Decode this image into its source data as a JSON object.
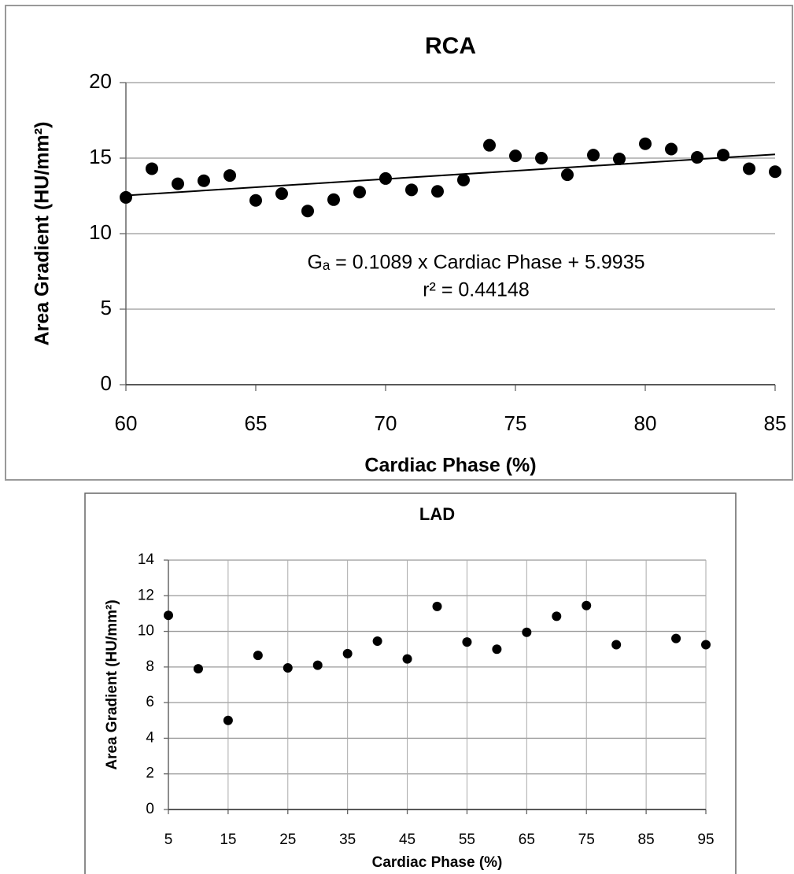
{
  "chart_data": [
    {
      "type": "scatter",
      "title": "RCA",
      "x_label": "Cardiac Phase (%)",
      "y_label": "Area Gradient (HU/mm²)",
      "x": [
        60,
        61,
        62,
        63,
        64,
        65,
        66,
        67,
        68,
        69,
        70,
        71,
        72,
        73,
        74,
        75,
        76,
        77,
        78,
        79,
        80,
        81,
        82,
        83,
        84,
        85
      ],
      "values": [
        12.4,
        14.3,
        13.3,
        13.5,
        13.85,
        12.2,
        12.65,
        11.5,
        12.25,
        12.75,
        13.65,
        12.9,
        12.8,
        13.55,
        15.85,
        15.15,
        15.0,
        13.9,
        15.2,
        14.95,
        15.95,
        15.6,
        15.05,
        15.2,
        14.3,
        14.1
      ],
      "color": "#000000",
      "xlim": [
        60,
        85
      ],
      "xticks": [
        60,
        65,
        70,
        75,
        80,
        85
      ],
      "ylim": [
        0,
        20
      ],
      "yticks": [
        0,
        5,
        10,
        15,
        20
      ],
      "grid": "y",
      "trendline": {
        "slope": 0.1089,
        "intercept": 5.9935
      },
      "annotations": [
        "Gₐ = 0.1089 x Cardiac Phase + 5.9935",
        "r² = 0.44148"
      ]
    },
    {
      "type": "scatter",
      "title": "LAD",
      "x_label": "Cardiac Phase (%)",
      "y_label": "Area Gradient (HU/mm²)",
      "x": [
        5,
        10,
        15,
        20,
        25,
        30,
        35,
        40,
        45,
        50,
        55,
        60,
        65,
        70,
        75,
        80,
        90,
        95
      ],
      "values": [
        10.9,
        7.9,
        5.0,
        8.65,
        7.95,
        8.1,
        8.75,
        9.45,
        8.45,
        11.4,
        9.4,
        9.0,
        9.95,
        10.85,
        11.45,
        9.25,
        9.6,
        9.25
      ],
      "color": "#000000",
      "xlim": [
        5,
        95
      ],
      "xticks": [
        5,
        15,
        25,
        35,
        45,
        55,
        65,
        75,
        85,
        95
      ],
      "ylim": [
        0,
        14
      ],
      "yticks": [
        0,
        2,
        4,
        6,
        8,
        10,
        12,
        14
      ],
      "grid": "both"
    }
  ]
}
